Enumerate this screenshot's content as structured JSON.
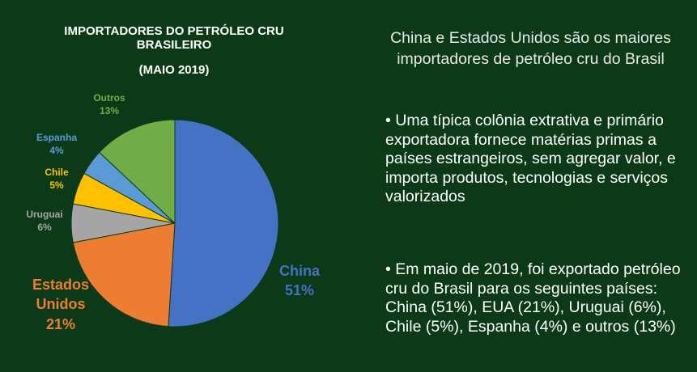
{
  "chart_data": {
    "type": "pie",
    "title": "IMPORTADORES DO PETRÓLEO CRU BRASILEIRO",
    "subtitle": "(MAIO 2019)",
    "categories": [
      "China",
      "Estados Unidos",
      "Uruguai",
      "Chile",
      "Espanha",
      "Outros"
    ],
    "values": [
      51,
      21,
      6,
      5,
      4,
      13
    ],
    "value_labels": [
      "51%",
      "21%",
      "6%",
      "5%",
      "4%",
      "13%"
    ],
    "colors": [
      "#4472c4",
      "#ed7d31",
      "#a5a5a5",
      "#ffc000",
      "#5b9bd5",
      "#70ad47"
    ]
  },
  "text": {
    "heading": "China e Estados Unidos são os maiores importadores de petróleo cru do Brasil",
    "bullets": [
      "Uma típica colônia extrativa e primário exportadora fornece matérias primas a países estrangeiros, sem agregar valor, e importa produtos, tecnologias e serviços valorizados",
      "Em maio de 2019, foi exportado petróleo cru do Brasil para os seguintes países: China (51%), EUA (21%), Uruguai (6%), Chile (5%), Espanha (4%) e outros (13%)"
    ]
  }
}
